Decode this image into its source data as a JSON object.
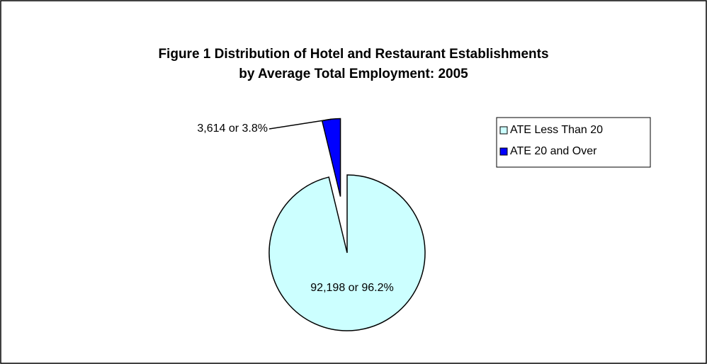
{
  "chart_data": {
    "type": "pie",
    "title": [
      "Figure 1  Distribution of Hotel and Restaurant Establishments",
      "by Average Total Employment: 2005"
    ],
    "categories": [
      "ATE Less Than 20",
      "ATE 20 and Over"
    ],
    "values": [
      92198,
      3614
    ],
    "value_labels": [
      "92,198 or 96.2%",
      "3,614 or 3.8%"
    ],
    "colors": [
      "#ccffff",
      "#0000ff"
    ],
    "legend": "right"
  }
}
